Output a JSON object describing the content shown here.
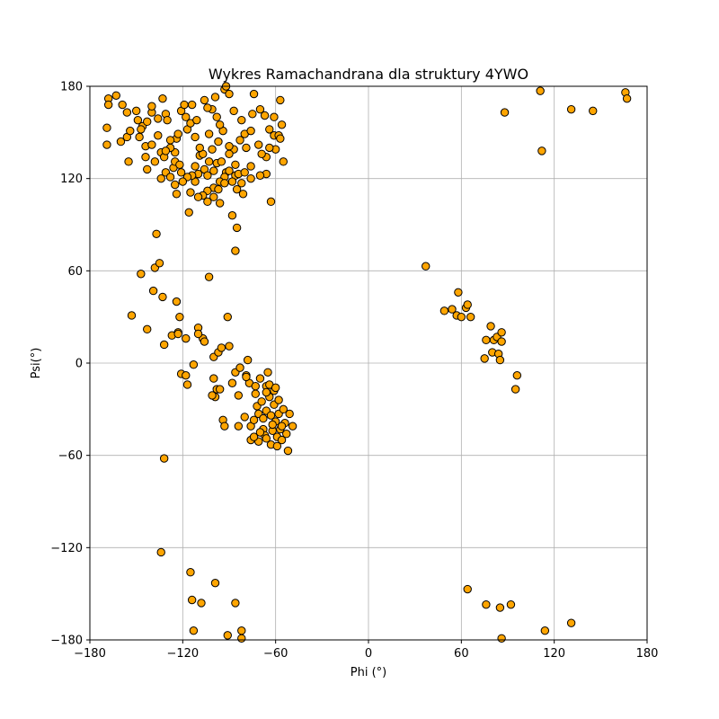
{
  "chart_data": {
    "type": "scatter",
    "title": "Wykres Ramachandrana dla struktury 4YWO",
    "xlabel": "Phi (°)",
    "ylabel": "Psi(°)",
    "xlim": [
      -180,
      180
    ],
    "ylim": [
      -180,
      180
    ],
    "xticks": [
      -180,
      -120,
      -60,
      0,
      60,
      120,
      180
    ],
    "yticks": [
      -180,
      -120,
      -60,
      0,
      60,
      120,
      180
    ],
    "xtick_labels": [
      "−180",
      "−120",
      "−60",
      "0",
      "60",
      "120",
      "180"
    ],
    "ytick_labels": [
      "−180",
      "−120",
      "−60",
      "0",
      "60",
      "120",
      "180"
    ],
    "grid": true,
    "marker_color": "#ffa500",
    "marker_edge": "#000000",
    "points": [
      [
        -168,
        172
      ],
      [
        -168,
        168
      ],
      [
        -163,
        174
      ],
      [
        -159,
        168
      ],
      [
        -169,
        153
      ],
      [
        -169,
        142
      ],
      [
        -160,
        144
      ],
      [
        -156,
        147
      ],
      [
        -155,
        131
      ],
      [
        -154,
        151
      ],
      [
        -156,
        163
      ],
      [
        -150,
        164
      ],
      [
        -149,
        158
      ],
      [
        -148,
        147
      ],
      [
        -146,
        154
      ],
      [
        -143,
        157
      ],
      [
        -140,
        163
      ],
      [
        -140,
        167
      ],
      [
        -136,
        159
      ],
      [
        -133,
        172
      ],
      [
        -131,
        162
      ],
      [
        -130,
        158
      ],
      [
        -136,
        148
      ],
      [
        -144,
        141
      ],
      [
        -147,
        152
      ],
      [
        -140,
        142
      ],
      [
        -138,
        131
      ],
      [
        -144,
        134
      ],
      [
        -143,
        126
      ],
      [
        -134,
        137
      ],
      [
        -132,
        134
      ],
      [
        -131,
        124
      ],
      [
        -128,
        121
      ],
      [
        -126,
        127
      ],
      [
        -125,
        131
      ],
      [
        -122,
        129
      ],
      [
        -125,
        137
      ],
      [
        -128,
        140
      ],
      [
        -124,
        146
      ],
      [
        -123,
        149
      ],
      [
        -118,
        160
      ],
      [
        -117,
        152
      ],
      [
        -121,
        164
      ],
      [
        -119,
        168
      ],
      [
        -114,
        168
      ],
      [
        -115,
        156
      ],
      [
        -111,
        158
      ],
      [
        -109,
        135
      ],
      [
        -107,
        136
      ],
      [
        -103,
        131
      ],
      [
        -106,
        126
      ],
      [
        -104,
        122
      ],
      [
        -100,
        125
      ],
      [
        -98,
        130
      ],
      [
        -95,
        131
      ],
      [
        -92,
        124
      ],
      [
        -90,
        125
      ],
      [
        -86,
        122
      ],
      [
        -93,
        121
      ],
      [
        -96,
        118
      ],
      [
        -100,
        114
      ],
      [
        -104,
        112
      ],
      [
        -107,
        109
      ],
      [
        -110,
        108
      ],
      [
        -115,
        111
      ],
      [
        -112,
        118
      ],
      [
        -110,
        123
      ],
      [
        -114,
        122
      ],
      [
        -117,
        121
      ],
      [
        -121,
        124
      ],
      [
        -125,
        116
      ],
      [
        -124,
        110
      ],
      [
        -120,
        118
      ],
      [
        -116,
        98
      ],
      [
        -104,
        105
      ],
      [
        -100,
        108
      ],
      [
        -97,
        113
      ],
      [
        -93,
        117
      ],
      [
        -88,
        118
      ],
      [
        -85,
        113
      ],
      [
        -84,
        123
      ],
      [
        -86,
        129
      ],
      [
        -87,
        139
      ],
      [
        -90,
        141
      ],
      [
        -94,
        151
      ],
      [
        -96,
        155
      ],
      [
        -98,
        160
      ],
      [
        -101,
        165
      ],
      [
        -104,
        166
      ],
      [
        -106,
        171
      ],
      [
        -99,
        173
      ],
      [
        -93,
        178
      ],
      [
        -92,
        183
      ],
      [
        -90,
        175
      ],
      [
        -87,
        164
      ],
      [
        -82,
        158
      ],
      [
        -80,
        149
      ],
      [
        -76,
        151
      ],
      [
        -75,
        162
      ],
      [
        -74,
        175
      ],
      [
        -70,
        165
      ],
      [
        -67,
        161
      ],
      [
        -64,
        152
      ],
      [
        -61,
        148
      ],
      [
        -58,
        148
      ],
      [
        -60,
        139
      ],
      [
        -64,
        140
      ],
      [
        -66,
        134
      ],
      [
        -69,
        136
      ],
      [
        -71,
        142
      ],
      [
        -66,
        123
      ],
      [
        -70,
        122
      ],
      [
        -76,
        120
      ],
      [
        -80,
        124
      ],
      [
        -81,
        110
      ],
      [
        -82,
        117
      ],
      [
        -63,
        105
      ],
      [
        -57,
        146
      ],
      [
        -56,
        155
      ],
      [
        -57,
        171
      ],
      [
        -55,
        131
      ],
      [
        -61,
        160
      ],
      [
        -88,
        96
      ],
      [
        -85,
        88
      ],
      [
        -86,
        73
      ],
      [
        -96,
        104
      ],
      [
        -112,
        147
      ],
      [
        -112,
        128
      ],
      [
        -109,
        140
      ],
      [
        -103,
        149
      ],
      [
        -101,
        139
      ],
      [
        -97,
        144
      ],
      [
        -90,
        136
      ],
      [
        -83,
        145
      ],
      [
        -79,
        140
      ],
      [
        -76,
        128
      ],
      [
        -131,
        138
      ],
      [
        -128,
        145
      ],
      [
        -134,
        120
      ],
      [
        -147,
        58
      ],
      [
        -138,
        62
      ],
      [
        -137,
        84
      ],
      [
        -135,
        65
      ],
      [
        -133,
        43
      ],
      [
        -139,
        47
      ],
      [
        -124,
        40
      ],
      [
        -122,
        30
      ],
      [
        -118,
        16
      ],
      [
        -123,
        20
      ],
      [
        -127,
        18
      ],
      [
        -132,
        12
      ],
      [
        -143,
        22
      ],
      [
        -153,
        31
      ],
      [
        -121,
        -7
      ],
      [
        -118,
        -8
      ],
      [
        -117,
        -14
      ],
      [
        -113,
        -1
      ],
      [
        -110,
        23
      ],
      [
        -107,
        16
      ],
      [
        -103,
        56
      ],
      [
        -100,
        -10
      ],
      [
        -98,
        -17
      ],
      [
        -96,
        -17
      ],
      [
        -100,
        4
      ],
      [
        -97,
        7
      ],
      [
        -95,
        10
      ],
      [
        -94,
        -37
      ],
      [
        -93,
        -41
      ],
      [
        -90,
        11
      ],
      [
        -88,
        -13
      ],
      [
        -86,
        -6
      ],
      [
        -84,
        -21
      ],
      [
        -84,
        -41
      ],
      [
        -83,
        -3
      ],
      [
        -80,
        -35
      ],
      [
        -79,
        -8
      ],
      [
        -78,
        2
      ],
      [
        -77,
        -13
      ],
      [
        -76,
        -41
      ],
      [
        -76,
        -50
      ],
      [
        -74,
        -37
      ],
      [
        -73,
        -20
      ],
      [
        -72,
        -28
      ],
      [
        -71,
        -33
      ],
      [
        -71,
        -51
      ],
      [
        -70,
        -10
      ],
      [
        -69,
        -25
      ],
      [
        -68,
        -43
      ],
      [
        -67,
        -47
      ],
      [
        -66,
        -31
      ],
      [
        -66,
        -15
      ],
      [
        -65,
        -6
      ],
      [
        -64,
        -22
      ],
      [
        -63,
        -34
      ],
      [
        -63,
        -53
      ],
      [
        -62,
        -44
      ],
      [
        -61,
        -18
      ],
      [
        -61,
        -27
      ],
      [
        -60,
        -38
      ],
      [
        -59,
        -48
      ],
      [
        -58,
        -24
      ],
      [
        -58,
        -33
      ],
      [
        -57,
        -43
      ],
      [
        -56,
        -50
      ],
      [
        -55,
        -30
      ],
      [
        -54,
        -39
      ],
      [
        -53,
        -46
      ],
      [
        -52,
        -57
      ],
      [
        -51,
        -33
      ],
      [
        -49,
        -41
      ],
      [
        -66,
        -19
      ],
      [
        -62,
        -40
      ],
      [
        -68,
        -36
      ],
      [
        -70,
        -45
      ],
      [
        -74,
        -48
      ],
      [
        -73,
        -15
      ],
      [
        -64,
        -14
      ],
      [
        -60,
        -16
      ],
      [
        -56,
        -41
      ],
      [
        -59,
        -54
      ],
      [
        -66,
        -49
      ],
      [
        -79,
        -9
      ],
      [
        -106,
        14
      ],
      [
        -132,
        -62
      ],
      [
        -134,
        -123
      ],
      [
        -115,
        -136
      ],
      [
        -114,
        -154
      ],
      [
        -108,
        -156
      ],
      [
        -99,
        -143
      ],
      [
        -113,
        -174
      ],
      [
        -91,
        -177
      ],
      [
        -86,
        -156
      ],
      [
        -82,
        -174
      ],
      [
        -82,
        -179
      ],
      [
        -110,
        19
      ],
      [
        -91,
        30
      ],
      [
        -123,
        19
      ],
      [
        -99,
        -22
      ],
      [
        -101,
        -21
      ],
      [
        37,
        63
      ],
      [
        49,
        34
      ],
      [
        54,
        35
      ],
      [
        57,
        31
      ],
      [
        58,
        46
      ],
      [
        60,
        30
      ],
      [
        63,
        36
      ],
      [
        64,
        38
      ],
      [
        66,
        30
      ],
      [
        75,
        3
      ],
      [
        76,
        15
      ],
      [
        79,
        24
      ],
      [
        80,
        7
      ],
      [
        81,
        15
      ],
      [
        83,
        17
      ],
      [
        84,
        6
      ],
      [
        85,
        2
      ],
      [
        86,
        14
      ],
      [
        86,
        20
      ],
      [
        96,
        -8
      ],
      [
        95,
        -17
      ],
      [
        88,
        163
      ],
      [
        111,
        177
      ],
      [
        112,
        138
      ],
      [
        131,
        165
      ],
      [
        145,
        164
      ],
      [
        166,
        176
      ],
      [
        167,
        172
      ],
      [
        64,
        -147
      ],
      [
        76,
        -157
      ],
      [
        85,
        -159
      ],
      [
        92,
        -157
      ],
      [
        86,
        -179
      ],
      [
        114,
        -174
      ],
      [
        131,
        -169
      ]
    ]
  }
}
